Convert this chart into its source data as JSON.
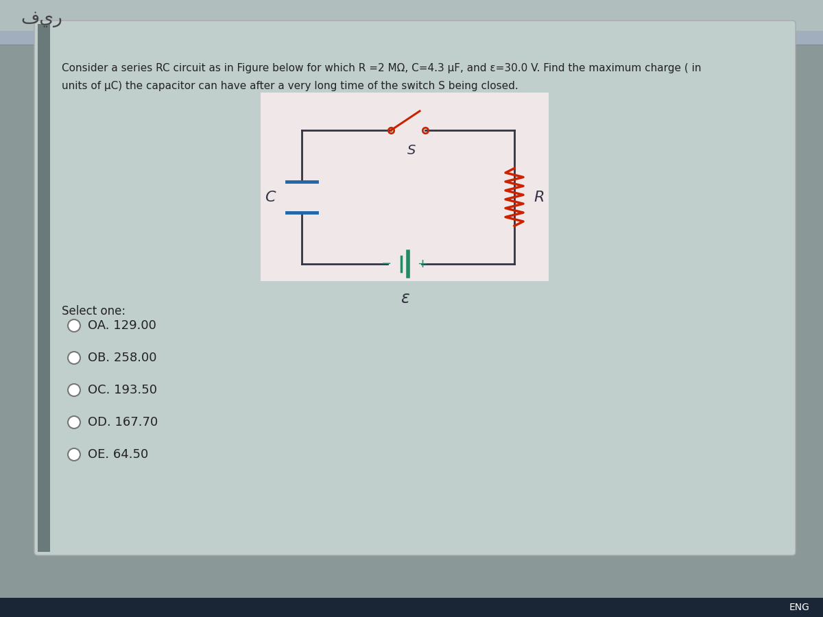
{
  "bg_outer": "#8a9898",
  "bg_card": "#c0cecc",
  "bg_circuit": "#e8eeee",
  "text_color": "#222222",
  "question_text_line1": "Consider a series RC circuit as in Figure below for which R =2 MΩ, C=4.3 μF, and ε=30.0 V. Find the maximum charge ( in",
  "question_text_line2": "units of μC) the capacitor can have after a very long time of the switch S being closed.",
  "arabic_text": "فير",
  "select_one_text": "Select one:",
  "options": [
    {
      "label": "A.",
      "value": "129.00"
    },
    {
      "label": "B.",
      "value": "258.00"
    },
    {
      "label": "C.",
      "value": "193.50"
    },
    {
      "label": "D.",
      "value": "167.70"
    },
    {
      "label": "E.",
      "value": "64.50"
    }
  ],
  "circuit_color": "#333344",
  "resistor_color": "#cc2200",
  "switch_color": "#cc2200",
  "capacitor_color": "#2266aa",
  "battery_color": "#228866",
  "eng_text": "ENG",
  "top_bar_color": "#b0bebe",
  "top_bar2_color": "#a0aebe",
  "bottom_bar_color": "#1a2535"
}
